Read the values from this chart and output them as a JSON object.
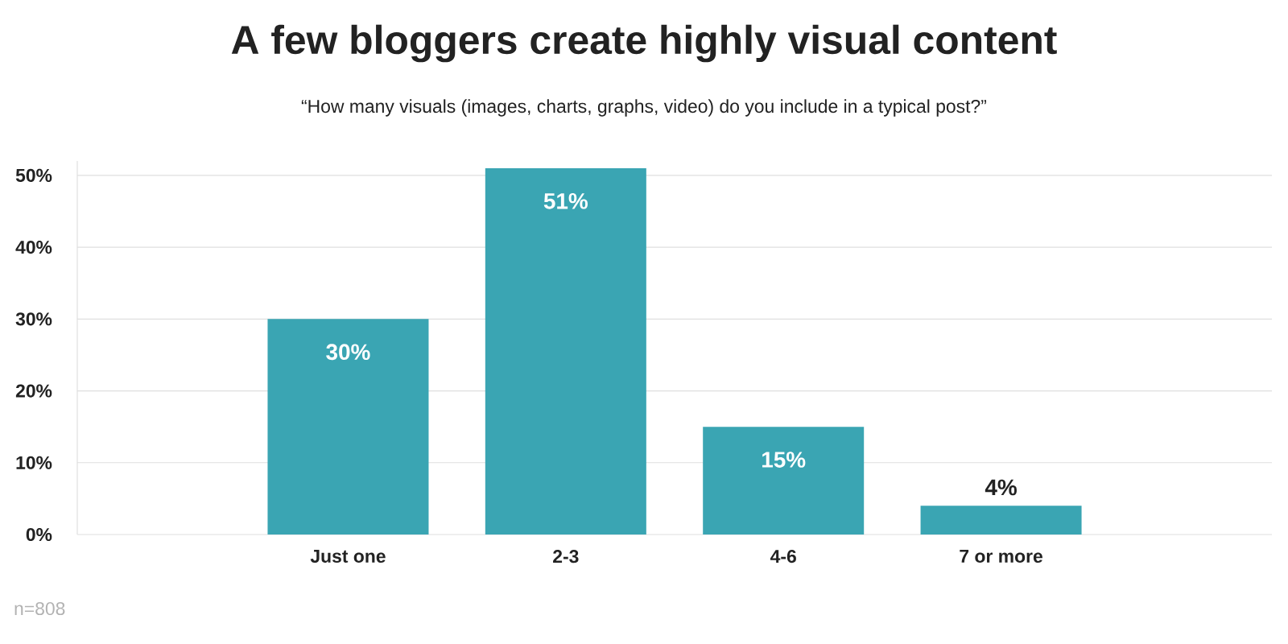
{
  "chart_data": {
    "type": "bar",
    "title": "A few bloggers create highly visual content",
    "subtitle": "“How many visuals (images, charts, graphs, video) do you include in a typical post?”",
    "categories": [
      "Just one",
      "2-3",
      "4-6",
      "7 or more"
    ],
    "values": [
      30,
      51,
      15,
      4
    ],
    "value_labels": [
      "30%",
      "51%",
      "15%",
      "4%"
    ],
    "color": "#3aa5b3",
    "ylim": [
      0,
      52
    ],
    "yticks": [
      {
        "value": 0,
        "label": "0%"
      },
      {
        "value": 10,
        "label": "10%"
      },
      {
        "value": 20,
        "label": "20%"
      },
      {
        "value": 30,
        "label": "30%"
      },
      {
        "value": 40,
        "label": "40%"
      },
      {
        "value": 50,
        "label": "50%"
      }
    ],
    "grid": "y",
    "annotations": [
      "n=808"
    ]
  }
}
